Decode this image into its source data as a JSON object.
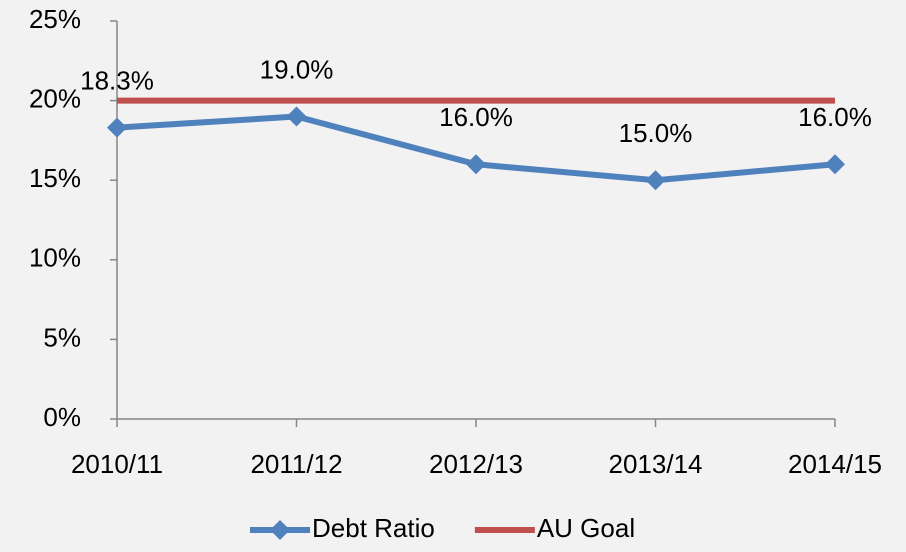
{
  "chart_data": {
    "type": "line",
    "categories": [
      "2010/11",
      "2011/12",
      "2012/13",
      "2013/14",
      "2014/15"
    ],
    "series": [
      {
        "name": "Debt Ratio",
        "color": "#4f81bd",
        "values": [
          18.3,
          19.0,
          16.0,
          15.0,
          16.0
        ],
        "value_labels": [
          "18.3%",
          "19.0%",
          "16.0%",
          "15.0%",
          "16.0%"
        ],
        "marker": "diamond"
      },
      {
        "name": "AU Goal",
        "color": "#c0504d",
        "values": [
          20,
          20,
          20,
          20,
          20
        ]
      }
    ],
    "ylim": [
      0,
      25
    ],
    "yticks": [
      {
        "value": 0,
        "label": "0%"
      },
      {
        "value": 5,
        "label": "5%"
      },
      {
        "value": 10,
        "label": "10%"
      },
      {
        "value": 15,
        "label": "15%"
      },
      {
        "value": 20,
        "label": "20%"
      },
      {
        "value": 25,
        "label": "25%"
      }
    ],
    "legend": "bottom",
    "grid": false
  }
}
